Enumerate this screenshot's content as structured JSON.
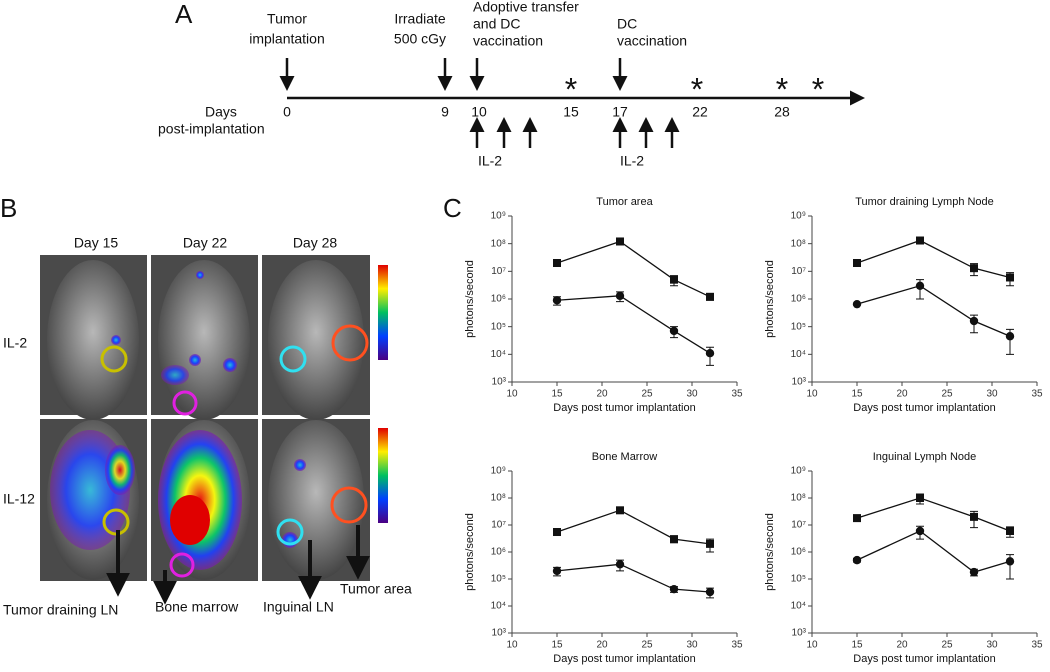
{
  "panel_a": {
    "label": "A",
    "events": [
      {
        "lines": [
          "Tumor",
          "implantation"
        ]
      },
      {
        "lines": [
          "Irradiate",
          "500 cGy"
        ]
      },
      {
        "lines": [
          "Adoptive transfer",
          "and DC",
          "vaccination"
        ]
      },
      {
        "lines": [
          "DC",
          "vaccination"
        ]
      }
    ],
    "axis_label": [
      "Days",
      "post-implantation"
    ],
    "days": [
      0,
      9,
      10,
      15,
      17,
      22,
      28
    ],
    "il2": [
      "IL-2",
      "IL-2"
    ],
    "asterisks": [
      "*",
      "*",
      "*",
      "*"
    ]
  },
  "panel_b": {
    "label": "B",
    "columns": [
      "Day 15",
      "Day 22",
      "Day 28"
    ],
    "rows": [
      "IL-2",
      "IL-12"
    ],
    "sites": [
      "Tumor draining LN",
      "Bone marrow",
      "Inguinal LN",
      "Tumor area"
    ]
  },
  "panel_c": {
    "label": "C"
  },
  "chart_data": [
    {
      "type": "line",
      "title": "Tumor area",
      "x_label": "Days post tumor implantation",
      "y_label": "photons/second",
      "log_y": true,
      "xlim": [
        10,
        35
      ],
      "xticks": [
        10,
        15,
        20,
        25,
        30,
        35
      ],
      "ylim": [
        1000,
        1000000000
      ],
      "yticks": [
        {
          "value": 1000,
          "label": "10³"
        },
        {
          "value": 10000,
          "label": "10⁴"
        },
        {
          "value": 100000,
          "label": "10⁵"
        },
        {
          "value": 1000000,
          "label": "10⁶"
        },
        {
          "value": 10000000,
          "label": "10⁷"
        },
        {
          "value": 100000000,
          "label": "10⁸"
        },
        {
          "value": 1000000000,
          "label": "10⁹"
        }
      ],
      "x": [
        15,
        22,
        28,
        32
      ],
      "series": [
        {
          "color": "#111111",
          "marker": "square",
          "values": [
            20000000,
            120000000,
            5000000,
            1200000
          ],
          "errors": [
            2000000,
            30000000,
            2000000,
            300000
          ]
        },
        {
          "color": "#111111",
          "marker": "circle",
          "values": [
            900000,
            1300000,
            70000,
            11000
          ],
          "errors": [
            300000,
            500000,
            30000,
            7000
          ]
        }
      ]
    },
    {
      "type": "line",
      "title": "Tumor draining Lymph Node",
      "x_label": "Days post tumor implantation",
      "y_label": "photons/second",
      "log_y": true,
      "xlim": [
        10,
        35
      ],
      "xticks": [
        10,
        15,
        20,
        25,
        30,
        35
      ],
      "ylim": [
        1000,
        1000000000
      ],
      "yticks": [
        {
          "value": 1000,
          "label": "10³"
        },
        {
          "value": 10000,
          "label": "10⁴"
        },
        {
          "value": 100000,
          "label": "10⁵"
        },
        {
          "value": 1000000,
          "label": "10⁶"
        },
        {
          "value": 10000000,
          "label": "10⁷"
        },
        {
          "value": 100000000,
          "label": "10⁸"
        },
        {
          "value": 1000000000,
          "label": "10⁹"
        }
      ],
      "x": [
        15,
        22,
        28,
        32
      ],
      "series": [
        {
          "color": "#111111",
          "marker": "square",
          "values": [
            20000000,
            130000000,
            13000000,
            6000000
          ],
          "errors": [
            2000000,
            15000000,
            6000000,
            3000000
          ]
        },
        {
          "color": "#111111",
          "marker": "circle",
          "values": [
            650000,
            3000000,
            160000,
            45000
          ],
          "errors": [
            50000,
            2000000,
            100000,
            35000
          ]
        }
      ]
    },
    {
      "type": "line",
      "title": "Bone Marrow",
      "x_label": "Days post tumor implantation",
      "y_label": "photons/second",
      "log_y": true,
      "xlim": [
        10,
        35
      ],
      "xticks": [
        10,
        15,
        20,
        25,
        30,
        35
      ],
      "ylim": [
        1000,
        1000000000
      ],
      "yticks": [
        {
          "value": 1000,
          "label": "10³"
        },
        {
          "value": 10000,
          "label": "10⁴"
        },
        {
          "value": 100000,
          "label": "10⁵"
        },
        {
          "value": 1000000,
          "label": "10⁶"
        },
        {
          "value": 10000000,
          "label": "10⁷"
        },
        {
          "value": 100000000,
          "label": "10⁸"
        },
        {
          "value": 1000000000,
          "label": "10⁹"
        }
      ],
      "x": [
        15,
        22,
        28,
        32
      ],
      "series": [
        {
          "color": "#111111",
          "marker": "square",
          "values": [
            5500000,
            35000000,
            3000000,
            2000000
          ],
          "errors": [
            500000,
            3000000,
            800000,
            1000000
          ]
        },
        {
          "color": "#111111",
          "marker": "circle",
          "values": [
            200000,
            350000,
            42000,
            33000
          ],
          "errors": [
            70000,
            150000,
            10000,
            13000
          ]
        }
      ]
    },
    {
      "type": "line",
      "title": "Inguinal Lymph Node",
      "x_label": "Days post tumor implantation",
      "y_label": "photons/second",
      "log_y": true,
      "xlim": [
        10,
        35
      ],
      "xticks": [
        10,
        15,
        20,
        25,
        30,
        35
      ],
      "ylim": [
        1000,
        1000000000
      ],
      "yticks": [
        {
          "value": 1000,
          "label": "10³"
        },
        {
          "value": 10000,
          "label": "10⁴"
        },
        {
          "value": 100000,
          "label": "10⁵"
        },
        {
          "value": 1000000,
          "label": "10⁶"
        },
        {
          "value": 10000000,
          "label": "10⁷"
        },
        {
          "value": 100000000,
          "label": "10⁸"
        },
        {
          "value": 1000000000,
          "label": "10⁹"
        }
      ],
      "x": [
        15,
        22,
        28,
        32
      ],
      "series": [
        {
          "color": "#111111",
          "marker": "square",
          "values": [
            18000000,
            100000000,
            20000000,
            6000000
          ],
          "errors": [
            2000000,
            40000000,
            12000000,
            2500000
          ]
        },
        {
          "color": "#111111",
          "marker": "circle",
          "values": [
            500000,
            6000000,
            180000,
            450000
          ],
          "errors": [
            80000,
            3000000,
            50000,
            350000
          ]
        }
      ]
    }
  ]
}
